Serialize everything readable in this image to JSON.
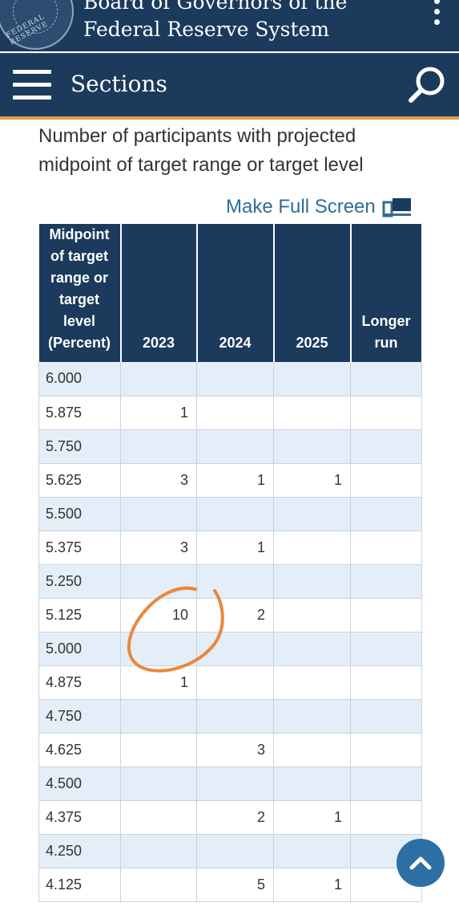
{
  "header": {
    "brand_line1": "Board of Governors of the",
    "brand_line2": "Federal Reserve System",
    "seal_text": "FEDERAL RESERVE",
    "menu_icon": "kebab-menu-icon"
  },
  "nav": {
    "menu_icon": "hamburger-icon",
    "sections_label": "Sections",
    "search_icon": "search-icon"
  },
  "colors": {
    "brand_navy": "#1b3a5c",
    "accent_orange": "#e29a4c",
    "link_blue": "#2f6d9a",
    "row_alt": "#e4eef8",
    "annotation_orange": "#e8883a"
  },
  "main": {
    "heading": "Number of participants with projected midpoint of target range or target level",
    "fullscreen_label": "Make Full Screen",
    "fullscreen_icon": "fullscreen-icon"
  },
  "table": {
    "header_midpoint": [
      "Midpoint",
      "of target",
      "range or",
      "target",
      "level",
      "(Percent)"
    ],
    "columns": [
      "2023",
      "2024",
      "2025"
    ],
    "longer_run": [
      "Longer",
      "run"
    ],
    "rows": [
      {
        "level": "6.000",
        "values": [
          "",
          "",
          "",
          ""
        ]
      },
      {
        "level": "5.875",
        "values": [
          "1",
          "",
          "",
          ""
        ]
      },
      {
        "level": "5.750",
        "values": [
          "",
          "",
          "",
          ""
        ]
      },
      {
        "level": "5.625",
        "values": [
          "3",
          "1",
          "1",
          ""
        ]
      },
      {
        "level": "5.500",
        "values": [
          "",
          "",
          "",
          ""
        ]
      },
      {
        "level": "5.375",
        "values": [
          "3",
          "1",
          "",
          ""
        ]
      },
      {
        "level": "5.250",
        "values": [
          "",
          "",
          "",
          ""
        ]
      },
      {
        "level": "5.125",
        "values": [
          "10",
          "2",
          "",
          ""
        ]
      },
      {
        "level": "5.000",
        "values": [
          "",
          "",
          "",
          ""
        ]
      },
      {
        "level": "4.875",
        "values": [
          "1",
          "",
          "",
          ""
        ]
      },
      {
        "level": "4.750",
        "values": [
          "",
          "",
          "",
          ""
        ]
      },
      {
        "level": "4.625",
        "values": [
          "",
          "3",
          "",
          ""
        ]
      },
      {
        "level": "4.500",
        "values": [
          "",
          "",
          "",
          ""
        ]
      },
      {
        "level": "4.375",
        "values": [
          "",
          "2",
          "1",
          ""
        ]
      },
      {
        "level": "4.250",
        "values": [
          "",
          "",
          "",
          ""
        ]
      },
      {
        "level": "4.125",
        "values": [
          "",
          "5",
          "1",
          ""
        ]
      }
    ]
  },
  "scroll_top": {
    "icon": "chevron-up-icon"
  }
}
